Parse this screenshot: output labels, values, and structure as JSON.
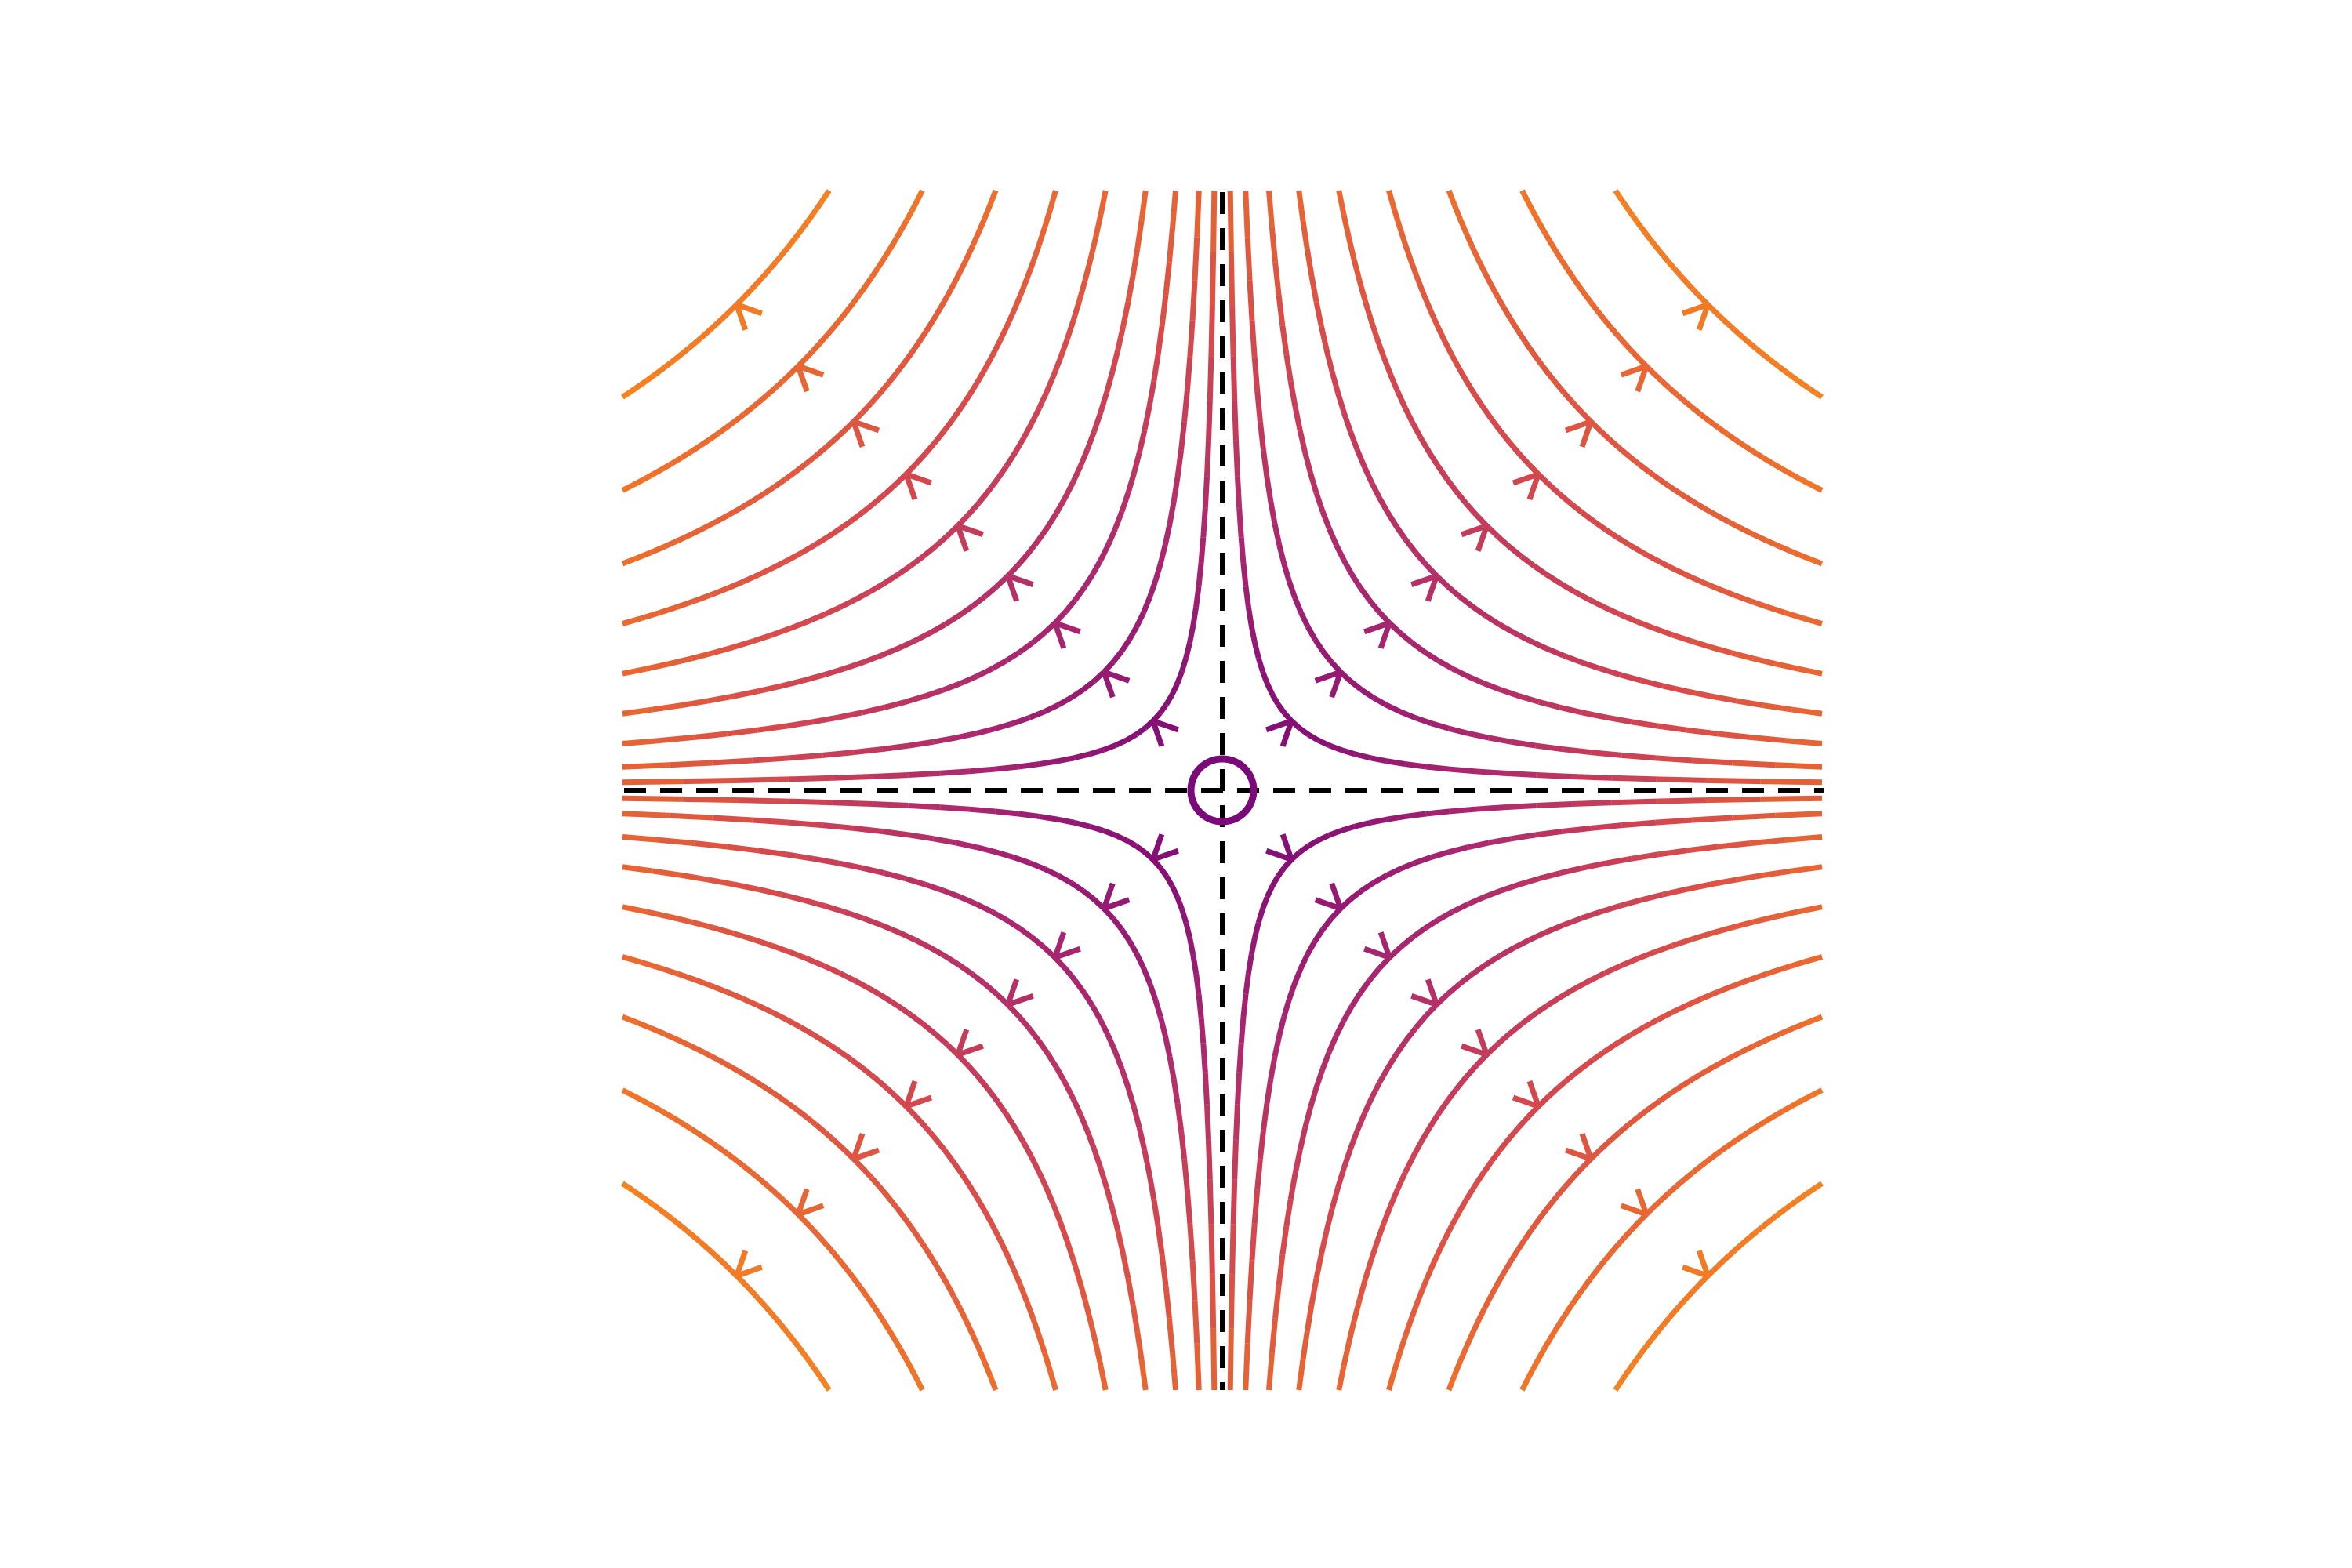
{
  "chart_data": {
    "type": "streamplot"
  }
}
